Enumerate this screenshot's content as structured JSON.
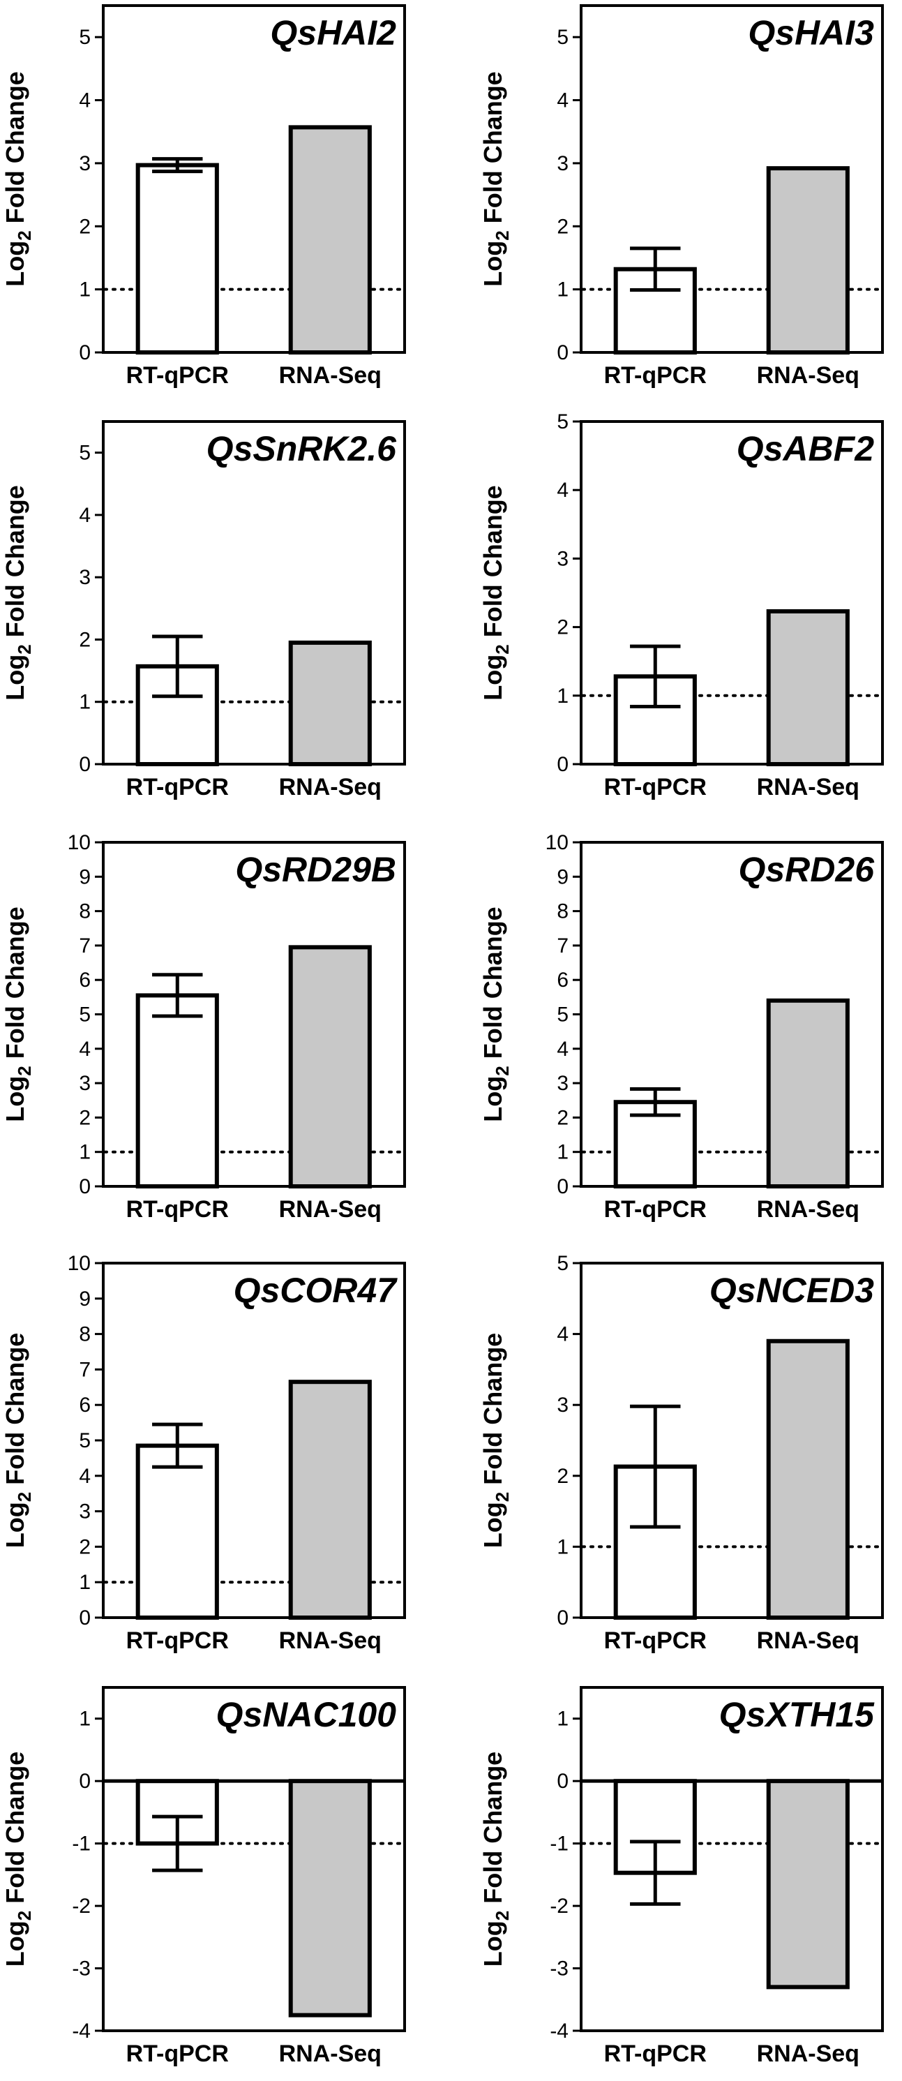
{
  "style": {
    "rt_fill": "#ffffff",
    "rnaseq_fill": "#c8c8c8",
    "stroke": "#000000",
    "threshold_line": "dotted"
  },
  "chart_data": [
    {
      "type": "bar",
      "title": "QsHAI2",
      "ylabel_main": "Log",
      "ylabel_sub": "2",
      "ylabel_rest": " Fold Change",
      "categories": [
        "RT-qPCR",
        "RNA-Seq"
      ],
      "values": [
        2.97,
        3.57
      ],
      "errors": [
        0.1,
        null
      ],
      "ylim": [
        0,
        5.5
      ],
      "yticks": [
        0,
        1,
        2,
        3,
        4,
        5
      ],
      "threshold": 1
    },
    {
      "type": "bar",
      "title": "QsHAI3",
      "ylabel_main": "Log",
      "ylabel_sub": "2",
      "ylabel_rest": " Fold Change",
      "categories": [
        "RT-qPCR",
        "RNA-Seq"
      ],
      "values": [
        1.32,
        2.92
      ],
      "errors": [
        0.33,
        null
      ],
      "ylim": [
        0,
        5.5
      ],
      "yticks": [
        0,
        1,
        2,
        3,
        4,
        5
      ],
      "threshold": 1
    },
    {
      "type": "bar",
      "title": "QsSnRK2.6",
      "ylabel_main": "Log",
      "ylabel_sub": "2",
      "ylabel_rest": " Fold Change",
      "categories": [
        "RT-qPCR",
        "RNA-Seq"
      ],
      "values": [
        1.57,
        1.95
      ],
      "errors": [
        0.48,
        null
      ],
      "ylim": [
        0,
        5.5
      ],
      "yticks": [
        0,
        1,
        2,
        3,
        4,
        5
      ],
      "threshold": 1
    },
    {
      "type": "bar",
      "title": "QsABF2",
      "ylabel_main": "Log",
      "ylabel_sub": "2",
      "ylabel_rest": " Fold Change",
      "categories": [
        "RT-qPCR",
        "RNA-Seq"
      ],
      "values": [
        1.28,
        2.23
      ],
      "errors": [
        0.44,
        null
      ],
      "ylim": [
        0,
        5
      ],
      "yticks": [
        0,
        1,
        2,
        3,
        4,
        5
      ],
      "threshold": 1
    },
    {
      "type": "bar",
      "title": "QsRD29B",
      "ylabel_main": "Log",
      "ylabel_sub": "2",
      "ylabel_rest": " Fold Change",
      "categories": [
        "RT-qPCR",
        "RNA-Seq"
      ],
      "values": [
        5.55,
        6.95
      ],
      "errors": [
        0.6,
        null
      ],
      "ylim": [
        0,
        10
      ],
      "yticks": [
        0,
        1,
        2,
        3,
        4,
        5,
        6,
        7,
        8,
        9,
        10
      ],
      "threshold": 1
    },
    {
      "type": "bar",
      "title": "QsRD26",
      "ylabel_main": "Log",
      "ylabel_sub": "2",
      "ylabel_rest": " Fold Change",
      "categories": [
        "RT-qPCR",
        "RNA-Seq"
      ],
      "values": [
        2.45,
        5.4
      ],
      "errors": [
        0.38,
        null
      ],
      "ylim": [
        0,
        10
      ],
      "yticks": [
        0,
        1,
        2,
        3,
        4,
        5,
        6,
        7,
        8,
        9,
        10
      ],
      "threshold": 1
    },
    {
      "type": "bar",
      "title": "QsCOR47",
      "ylabel_main": "Log",
      "ylabel_sub": "2",
      "ylabel_rest": " Fold Change",
      "categories": [
        "RT-qPCR",
        "RNA-Seq"
      ],
      "values": [
        4.85,
        6.65
      ],
      "errors": [
        0.6,
        null
      ],
      "ylim": [
        0,
        10
      ],
      "yticks": [
        0,
        1,
        2,
        3,
        4,
        5,
        6,
        7,
        8,
        9,
        10
      ],
      "threshold": 1
    },
    {
      "type": "bar",
      "title": "QsNCED3",
      "ylabel_main": "Log",
      "ylabel_sub": "2",
      "ylabel_rest": " Fold Change",
      "categories": [
        "RT-qPCR",
        "RNA-Seq"
      ],
      "values": [
        2.13,
        3.9
      ],
      "errors": [
        0.85,
        null
      ],
      "ylim": [
        0,
        5
      ],
      "yticks": [
        0,
        1,
        2,
        3,
        4,
        5
      ],
      "threshold": 1
    },
    {
      "type": "bar",
      "title": "QsNAC100",
      "ylabel_main": "Log",
      "ylabel_sub": "2",
      "ylabel_rest": " Fold Change",
      "categories": [
        "RT-qPCR",
        "RNA-Seq"
      ],
      "values": [
        -1.0,
        -3.75
      ],
      "errors": [
        0.43,
        null
      ],
      "ylim": [
        -4,
        1.5
      ],
      "yticks": [
        -4,
        -3,
        -2,
        -1,
        0,
        1
      ],
      "threshold": -1
    },
    {
      "type": "bar",
      "title": "QsXTH15",
      "ylabel_main": "Log",
      "ylabel_sub": "2",
      "ylabel_rest": " Fold Change",
      "categories": [
        "RT-qPCR",
        "RNA-Seq"
      ],
      "values": [
        -1.47,
        -3.3
      ],
      "errors": [
        0.5,
        null
      ],
      "ylim": [
        -4,
        1.5
      ],
      "yticks": [
        -4,
        -3,
        -2,
        -1,
        0,
        1
      ],
      "threshold": -1
    }
  ]
}
